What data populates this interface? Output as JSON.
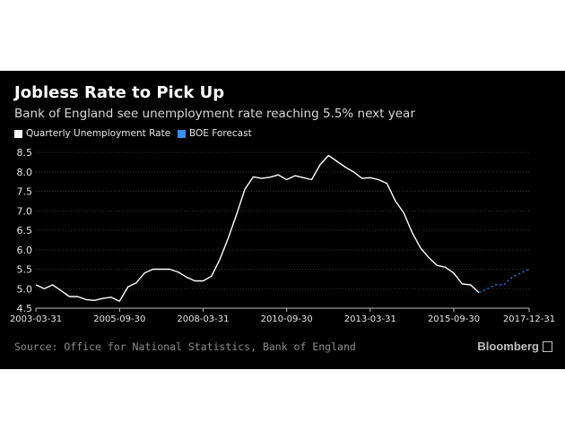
{
  "title": "Jobless Rate to Pick Up",
  "subtitle": "Bank of England see unemployment rate reaching 5.5% next year",
  "legend": {
    "actual_label": "Quarterly Unemployment Rate",
    "forecast_label": "BOE Forecast"
  },
  "source": "Source: Office for National Statistics, Bank of England",
  "brand": "Bloomberg",
  "colors": {
    "background": "#000000",
    "actual_line": "#ffffff",
    "forecast_line": "#2f6fd6",
    "forecast_swatch": "#3a8ef6",
    "grid": "#333333",
    "text": "#e6e6e6"
  },
  "chart_data": {
    "type": "line",
    "ylim": [
      4.5,
      8.5
    ],
    "yticks": [
      "4.5",
      "5.0",
      "5.5",
      "6.0",
      "6.5",
      "7.0",
      "7.5",
      "8.0",
      "8.5"
    ],
    "xtick_labels": [
      "2003-03-31",
      "2005-09-30",
      "2008-03-31",
      "2010-09-30",
      "2013-03-31",
      "2015-09-30",
      "2017-12-31"
    ],
    "xlim": [
      "2003-03-31",
      "2017-12-31"
    ],
    "grid": true,
    "legend_position": "top-left",
    "series": [
      {
        "name": "Quarterly Unemployment Rate",
        "style": "solid",
        "x": [
          "2003-03-31",
          "2003-06-30",
          "2003-09-30",
          "2003-12-31",
          "2004-03-31",
          "2004-06-30",
          "2004-09-30",
          "2004-12-31",
          "2005-03-31",
          "2005-06-30",
          "2005-09-30",
          "2005-12-31",
          "2006-03-31",
          "2006-06-30",
          "2006-09-30",
          "2006-12-31",
          "2007-03-31",
          "2007-06-30",
          "2007-09-30",
          "2007-12-31",
          "2008-03-31",
          "2008-06-30",
          "2008-09-30",
          "2008-12-31",
          "2009-03-31",
          "2009-06-30",
          "2009-09-30",
          "2009-12-31",
          "2010-03-31",
          "2010-06-30",
          "2010-09-30",
          "2010-12-31",
          "2011-03-31",
          "2011-06-30",
          "2011-09-30",
          "2011-12-31",
          "2012-03-31",
          "2012-06-30",
          "2012-09-30",
          "2012-12-31",
          "2013-03-31",
          "2013-06-30",
          "2013-09-30",
          "2013-12-31",
          "2014-03-31",
          "2014-06-30",
          "2014-09-30",
          "2014-12-31",
          "2015-03-31",
          "2015-06-30",
          "2015-09-30",
          "2015-12-31",
          "2016-03-31",
          "2016-06-30"
        ],
        "values": [
          5.1,
          5.0,
          5.1,
          4.95,
          4.8,
          4.8,
          4.72,
          4.7,
          4.75,
          4.78,
          4.68,
          5.05,
          5.15,
          5.4,
          5.5,
          5.5,
          5.5,
          5.43,
          5.3,
          5.2,
          5.2,
          5.32,
          5.75,
          6.3,
          6.9,
          7.55,
          7.87,
          7.83,
          7.86,
          7.92,
          7.8,
          7.9,
          7.85,
          7.8,
          8.18,
          8.42,
          8.27,
          8.12,
          8.0,
          7.83,
          7.85,
          7.8,
          7.7,
          7.25,
          6.95,
          6.45,
          6.05,
          5.8,
          5.6,
          5.55,
          5.4,
          5.12,
          5.1,
          4.9
        ]
      },
      {
        "name": "BOE Forecast",
        "style": "dashed",
        "x": [
          "2016-06-30",
          "2016-09-30",
          "2016-12-31",
          "2017-03-31",
          "2017-06-30",
          "2017-09-30",
          "2017-12-31"
        ],
        "values": [
          4.9,
          5.0,
          5.1,
          5.1,
          5.3,
          5.4,
          5.5
        ]
      }
    ]
  }
}
